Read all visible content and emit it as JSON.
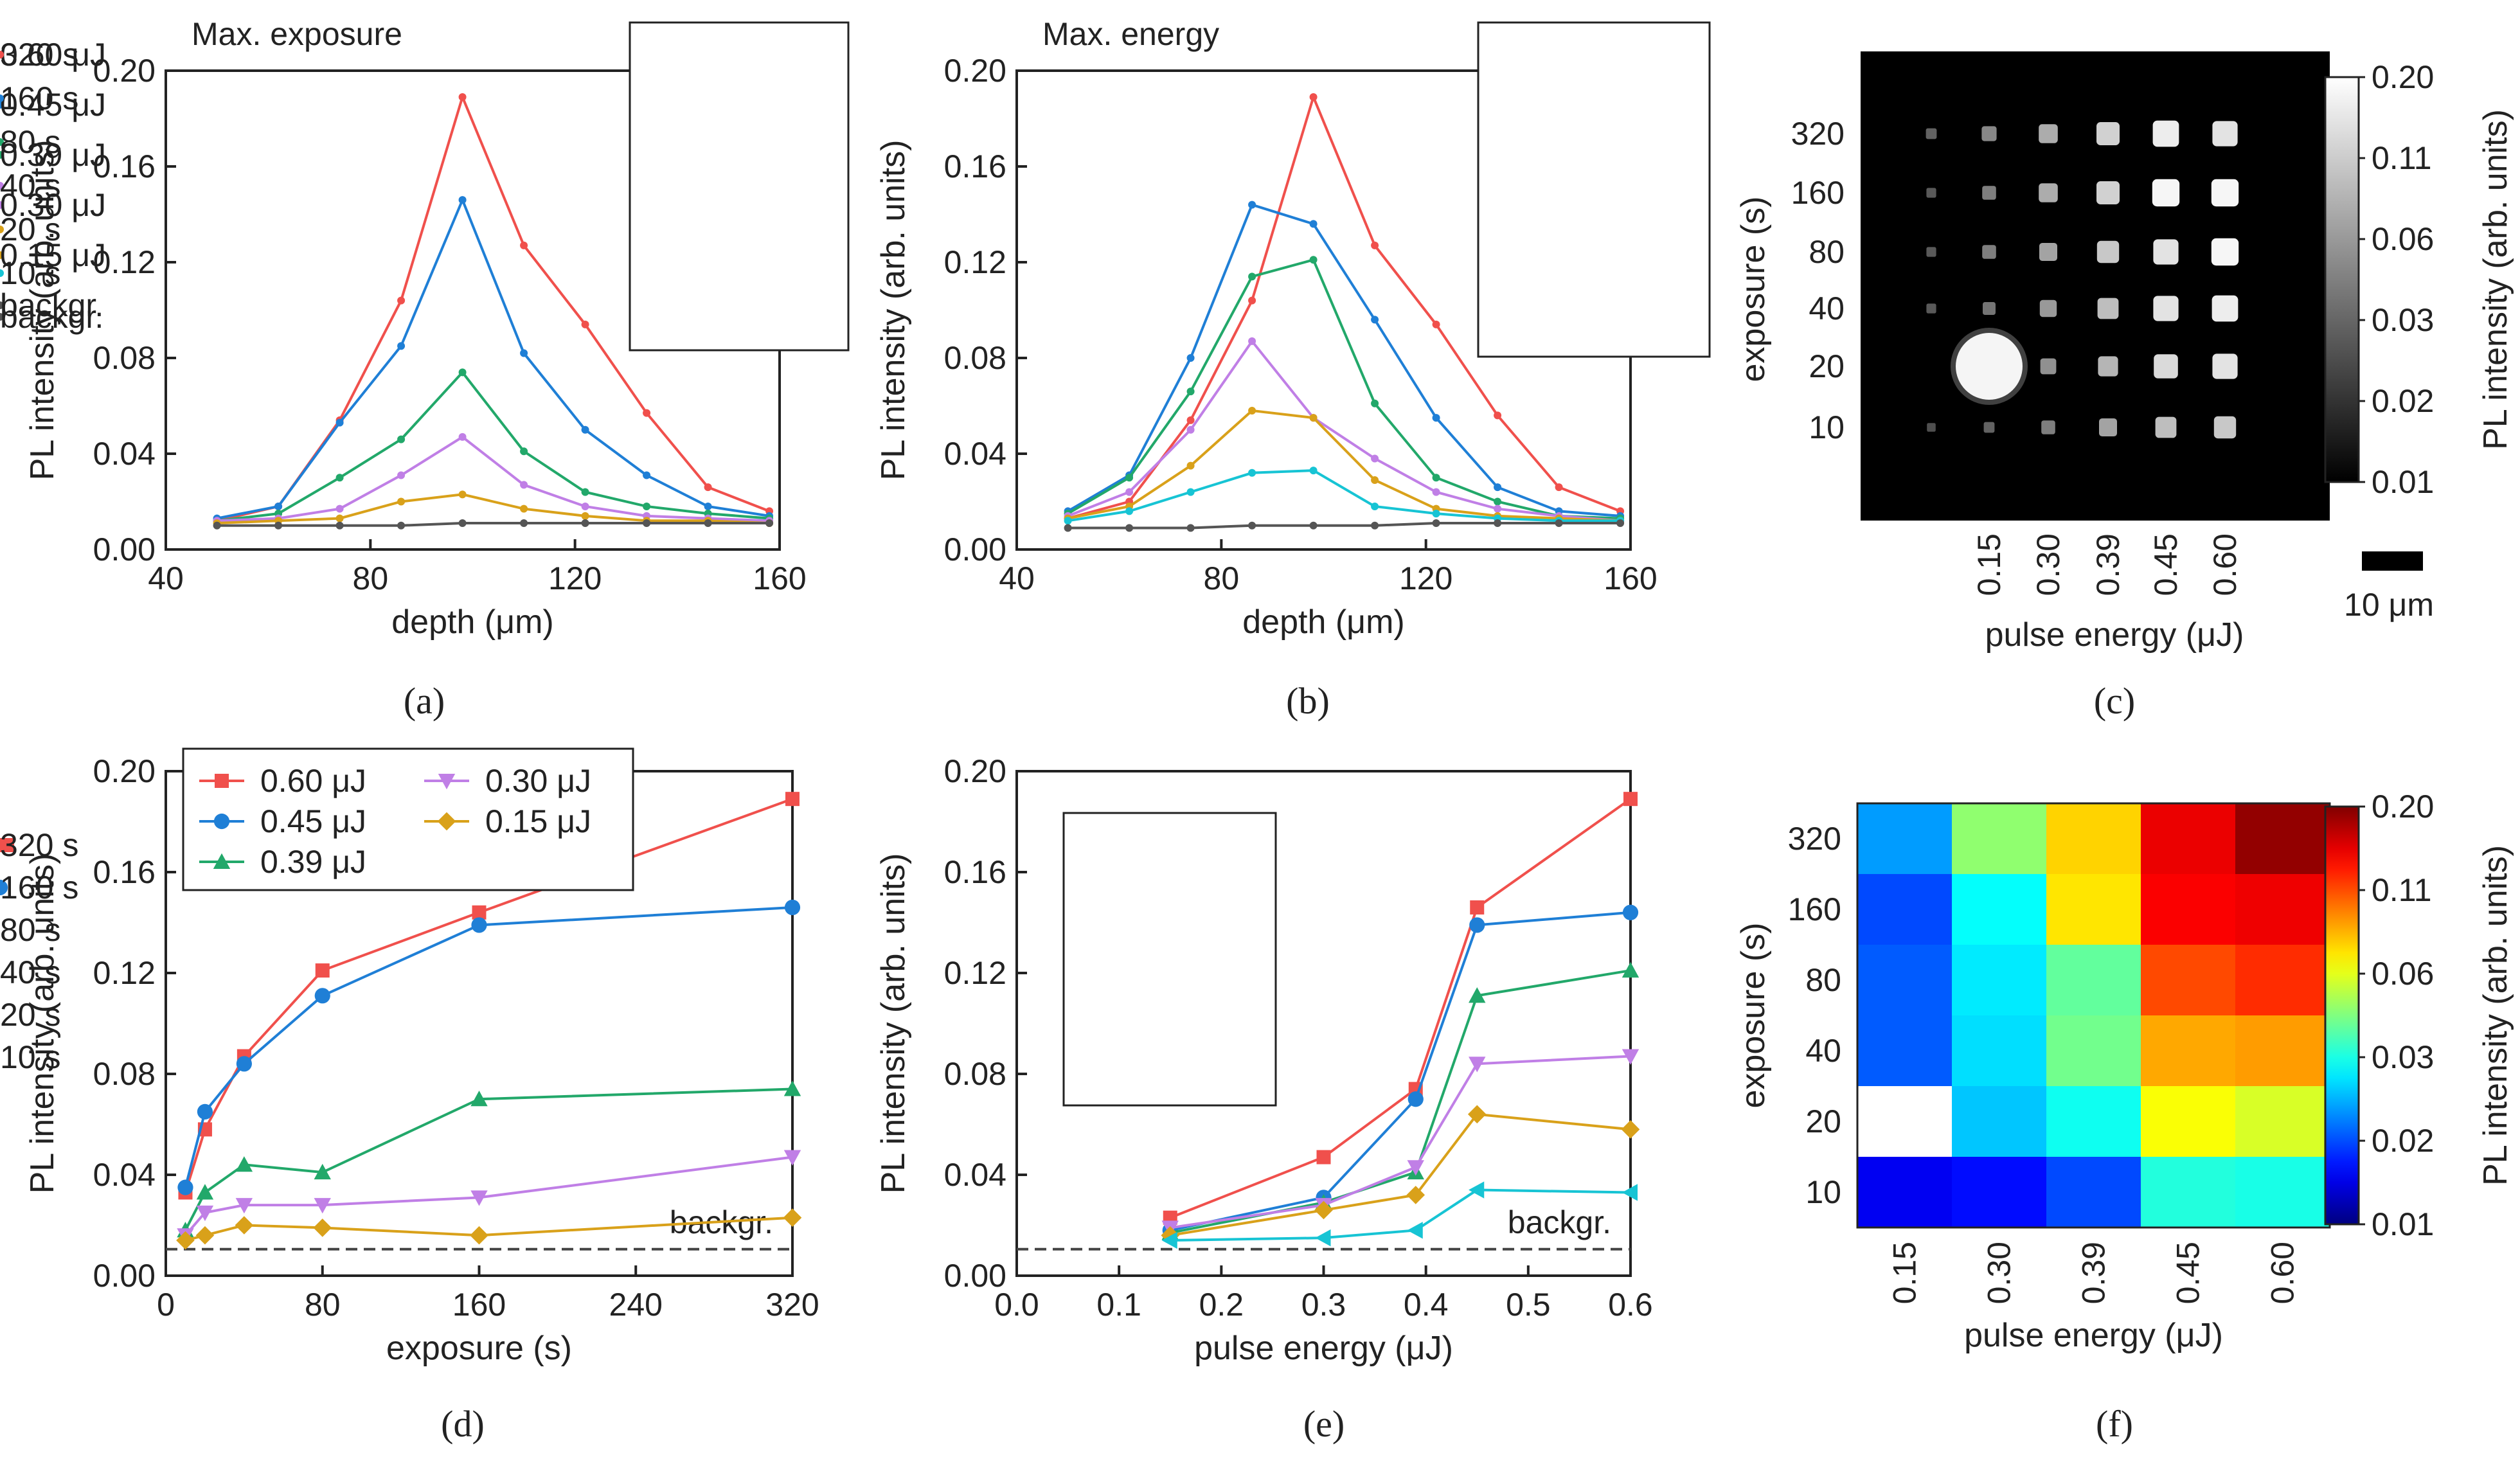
{
  "chart_data": [
    {
      "panel": "(a)",
      "type": "line",
      "title": "Max. exposure",
      "xlabel": "depth (μm)",
      "ylabel": "PL intensity (arb. units)",
      "xlim": [
        40,
        160
      ],
      "ylim": [
        0,
        0.2
      ],
      "xticks": [
        "40",
        "80",
        "120",
        "160"
      ],
      "yticks": [
        "0.00",
        "0.04",
        "0.08",
        "0.12",
        "0.16",
        "0.20"
      ],
      "legend_position": "top-right",
      "x": [
        50,
        62,
        74,
        86,
        98,
        110,
        122,
        134,
        146,
        158
      ],
      "series": [
        {
          "name": "0.60 μJ",
          "color": "#f0504c",
          "values": [
            0.012,
            0.018,
            0.054,
            0.104,
            0.189,
            0.127,
            0.094,
            0.057,
            0.026,
            0.016
          ]
        },
        {
          "name": "0.45 μJ",
          "color": "#1f7fd6",
          "values": [
            0.013,
            0.018,
            0.053,
            0.085,
            0.146,
            0.082,
            0.05,
            0.031,
            0.018,
            0.014
          ]
        },
        {
          "name": "0.39 μJ",
          "color": "#22a86a",
          "values": [
            0.012,
            0.015,
            0.03,
            0.046,
            0.074,
            0.041,
            0.024,
            0.018,
            0.015,
            0.013
          ]
        },
        {
          "name": "0.30 μJ",
          "color": "#c07fe6",
          "values": [
            0.012,
            0.013,
            0.017,
            0.031,
            0.047,
            0.027,
            0.018,
            0.014,
            0.013,
            0.012
          ]
        },
        {
          "name": "0.15 μJ",
          "color": "#d9a11a",
          "values": [
            0.011,
            0.012,
            0.013,
            0.02,
            0.023,
            0.017,
            0.014,
            0.012,
            0.012,
            0.011
          ]
        },
        {
          "name": "backgr.",
          "color": "#555555",
          "values": [
            0.01,
            0.01,
            0.01,
            0.01,
            0.011,
            0.011,
            0.011,
            0.011,
            0.011,
            0.011
          ]
        }
      ]
    },
    {
      "panel": "(b)",
      "type": "line",
      "title": "Max. energy",
      "xlabel": "depth (μm)",
      "ylabel": "PL intensity (arb. units)",
      "xlim": [
        40,
        160
      ],
      "ylim": [
        0,
        0.2
      ],
      "xticks": [
        "40",
        "80",
        "120",
        "160"
      ],
      "yticks": [
        "0.00",
        "0.04",
        "0.08",
        "0.12",
        "0.16",
        "0.20"
      ],
      "legend_position": "top-right",
      "x": [
        50,
        62,
        74,
        86,
        98,
        110,
        122,
        134,
        146,
        158
      ],
      "series": [
        {
          "name": "320 s",
          "color": "#f0504c",
          "values": [
            0.013,
            0.02,
            0.054,
            0.104,
            0.189,
            0.127,
            0.094,
            0.056,
            0.026,
            0.016
          ]
        },
        {
          "name": "160 s",
          "color": "#1f7fd6",
          "values": [
            0.016,
            0.031,
            0.08,
            0.144,
            0.136,
            0.096,
            0.055,
            0.026,
            0.016,
            0.014
          ]
        },
        {
          "name": "80 s",
          "color": "#22a86a",
          "values": [
            0.015,
            0.03,
            0.066,
            0.114,
            0.121,
            0.061,
            0.03,
            0.02,
            0.014,
            0.013
          ]
        },
        {
          "name": "40 s",
          "color": "#c07fe6",
          "values": [
            0.014,
            0.024,
            0.05,
            0.087,
            0.055,
            0.038,
            0.024,
            0.017,
            0.014,
            0.012
          ]
        },
        {
          "name": "20 s",
          "color": "#d9a11a",
          "values": [
            0.013,
            0.018,
            0.035,
            0.058,
            0.055,
            0.029,
            0.017,
            0.014,
            0.013,
            0.012
          ]
        },
        {
          "name": "10 s",
          "color": "#17c4d4",
          "values": [
            0.012,
            0.016,
            0.024,
            0.032,
            0.033,
            0.018,
            0.015,
            0.013,
            0.012,
            0.012
          ]
        },
        {
          "name": "backgr.",
          "color": "#555555",
          "values": [
            0.009,
            0.009,
            0.009,
            0.01,
            0.01,
            0.01,
            0.011,
            0.011,
            0.011,
            0.011
          ]
        }
      ]
    },
    {
      "panel": "(c)",
      "type": "heatmap",
      "style": "grayscale microscope image",
      "xlabel": "pulse energy (μJ)",
      "ylabel": "exposure (s)",
      "colorbar_label": "PL intensity (arb. units)",
      "categories_x": [
        "0.15",
        "0.30",
        "0.39",
        "0.45",
        "0.60"
      ],
      "categories_y": [
        "320",
        "160",
        "80",
        "40",
        "20",
        "10"
      ],
      "colorbar_ticks": [
        "0.20",
        "0.11",
        "0.06",
        "0.03",
        "0.02",
        "0.01"
      ],
      "scale_bar_label": "10 μm",
      "spot_brightness_columns": [
        "faint",
        "0.15",
        "0.30",
        "0.39",
        "0.45",
        "0.60"
      ],
      "spot_brightness": [
        [
          0.15,
          0.35,
          0.55,
          0.75,
          0.9,
          0.85
        ],
        [
          0.1,
          0.3,
          0.55,
          0.75,
          0.95,
          0.95
        ],
        [
          0.1,
          0.3,
          0.5,
          0.7,
          0.85,
          0.95
        ],
        [
          0.1,
          0.25,
          0.45,
          0.65,
          0.85,
          0.9
        ],
        [
          0.0,
          1.0,
          0.4,
          0.6,
          0.8,
          0.85
        ],
        [
          0.05,
          0.15,
          0.3,
          0.5,
          0.65,
          0.7
        ]
      ],
      "big_spot": {
        "row": "20",
        "col": "0.15"
      }
    },
    {
      "panel": "(d)",
      "type": "line",
      "xlabel": "exposure (s)",
      "ylabel": "PL intensity (arb. units)",
      "xlim": [
        0,
        320
      ],
      "ylim": [
        0,
        0.2
      ],
      "xticks": [
        "0",
        "80",
        "160",
        "240",
        "320"
      ],
      "yticks": [
        "0.00",
        "0.04",
        "0.08",
        "0.12",
        "0.16",
        "0.20"
      ],
      "legend_position": "top-left",
      "annotation": "backgr.",
      "background_level": 0.0105,
      "x": [
        10,
        20,
        40,
        80,
        160,
        320
      ],
      "series": [
        {
          "name": "0.60 μJ",
          "color": "#f0504c",
          "marker": "square",
          "values": [
            0.033,
            0.058,
            0.087,
            0.121,
            0.144,
            0.189
          ]
        },
        {
          "name": "0.45 μJ",
          "color": "#1f7fd6",
          "marker": "circle",
          "values": [
            0.035,
            0.065,
            0.084,
            0.111,
            0.139,
            0.146
          ]
        },
        {
          "name": "0.39 μJ",
          "color": "#22a86a",
          "marker": "triangle-up",
          "values": [
            0.018,
            0.033,
            0.044,
            0.041,
            0.07,
            0.074
          ]
        },
        {
          "name": "0.30 μJ",
          "color": "#c07fe6",
          "marker": "triangle-down",
          "values": [
            0.016,
            0.025,
            0.028,
            0.028,
            0.031,
            0.047
          ]
        },
        {
          "name": "0.15 μJ",
          "color": "#d9a11a",
          "marker": "diamond",
          "values": [
            0.014,
            0.016,
            0.02,
            0.019,
            0.016,
            0.023
          ]
        }
      ]
    },
    {
      "panel": "(e)",
      "type": "line",
      "xlabel": "pulse energy (μJ)",
      "ylabel": "PL intensity (arb. units)",
      "xlim": [
        0,
        0.6
      ],
      "ylim": [
        0,
        0.2
      ],
      "xticks": [
        "0.0",
        "0.1",
        "0.2",
        "0.3",
        "0.4",
        "0.5",
        "0.6"
      ],
      "yticks": [
        "0.00",
        "0.04",
        "0.08",
        "0.12",
        "0.16",
        "0.20"
      ],
      "legend_position": "top-left",
      "annotation": "backgr.",
      "background_level": 0.0105,
      "x": [
        0.15,
        0.3,
        0.39,
        0.45,
        0.6
      ],
      "series": [
        {
          "name": "320 s",
          "color": "#f0504c",
          "marker": "square",
          "values": [
            0.023,
            0.047,
            0.074,
            0.146,
            0.189
          ]
        },
        {
          "name": "160 s",
          "color": "#1f7fd6",
          "marker": "circle",
          "values": [
            0.018,
            0.031,
            0.07,
            0.139,
            0.144
          ]
        },
        {
          "name": "80 s",
          "color": "#22a86a",
          "marker": "triangle-up",
          "values": [
            0.017,
            0.029,
            0.041,
            0.111,
            0.121
          ]
        },
        {
          "name": "40 s",
          "color": "#c07fe6",
          "marker": "triangle-down",
          "values": [
            0.019,
            0.028,
            0.043,
            0.084,
            0.087
          ]
        },
        {
          "name": "20 s",
          "color": "#d9a11a",
          "marker": "diamond",
          "values": [
            0.016,
            0.026,
            0.032,
            0.064,
            0.058
          ]
        },
        {
          "name": "10 s",
          "color": "#17c4d4",
          "marker": "triangle-left",
          "values": [
            0.014,
            0.015,
            0.018,
            0.034,
            0.033
          ]
        }
      ]
    },
    {
      "panel": "(f)",
      "type": "heatmap",
      "xlabel": "pulse energy (μJ)",
      "ylabel": "exposure (s)",
      "colorbar_label": "PL intensity (arb. units)",
      "colormap": "jet (log scale)",
      "categories_x": [
        "0.15",
        "0.30",
        "0.39",
        "0.45",
        "0.60"
      ],
      "categories_y": [
        "320",
        "160",
        "80",
        "40",
        "20",
        "10"
      ],
      "colorbar_ticks": [
        "0.20",
        "0.11",
        "0.06",
        "0.03",
        "0.02",
        "0.01"
      ],
      "values": [
        [
          0.023,
          0.047,
          0.074,
          0.146,
          0.189
        ],
        [
          0.018,
          0.031,
          0.07,
          0.139,
          0.144
        ],
        [
          0.019,
          0.029,
          0.041,
          0.111,
          0.121
        ],
        [
          0.019,
          0.028,
          0.043,
          0.084,
          0.087
        ],
        [
          null,
          0.026,
          0.032,
          0.064,
          0.058
        ],
        [
          0.014,
          0.015,
          0.018,
          0.034,
          0.033
        ]
      ]
    }
  ],
  "captions": [
    "(a)",
    "(b)",
    "(c)",
    "(d)",
    "(e)",
    "(f)"
  ]
}
